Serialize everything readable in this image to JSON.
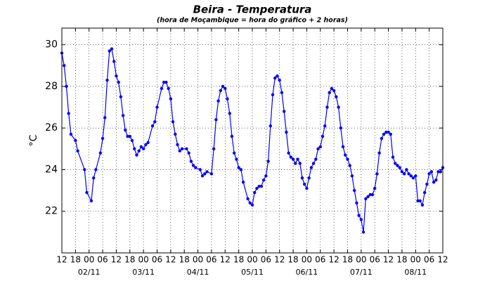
{
  "chart_data": {
    "type": "line",
    "title": "Beira - Temperatura",
    "subtitle": "(hora de Moçambique = hora do gráfico + 2 horas)",
    "y_label": "°C",
    "color": "#0000ff",
    "grid": true,
    "xlim": [
      0,
      168
    ],
    "ylim": [
      20,
      30.8
    ],
    "yticks": [
      22,
      24,
      26,
      28,
      30
    ],
    "xticks": [
      {
        "value": 0,
        "label": "12"
      },
      {
        "value": 6,
        "label": "18"
      },
      {
        "value": 12,
        "label": "00"
      },
      {
        "value": 18,
        "label": "06"
      },
      {
        "value": 24,
        "label": "12"
      },
      {
        "value": 30,
        "label": "18"
      },
      {
        "value": 36,
        "label": "00"
      },
      {
        "value": 42,
        "label": "06"
      },
      {
        "value": 48,
        "label": "12"
      },
      {
        "value": 54,
        "label": "18"
      },
      {
        "value": 60,
        "label": "00"
      },
      {
        "value": 66,
        "label": "06"
      },
      {
        "value": 72,
        "label": "12"
      },
      {
        "value": 78,
        "label": "18"
      },
      {
        "value": 84,
        "label": "00"
      },
      {
        "value": 90,
        "label": "06"
      },
      {
        "value": 96,
        "label": "12"
      },
      {
        "value": 102,
        "label": "18"
      },
      {
        "value": 108,
        "label": "00"
      },
      {
        "value": 114,
        "label": "06"
      },
      {
        "value": 120,
        "label": "12"
      },
      {
        "value": 126,
        "label": "18"
      },
      {
        "value": 132,
        "label": "00"
      },
      {
        "value": 138,
        "label": "06"
      },
      {
        "value": 144,
        "label": "12"
      },
      {
        "value": 150,
        "label": "18"
      },
      {
        "value": 156,
        "label": "00"
      },
      {
        "value": 162,
        "label": "06"
      },
      {
        "value": 168,
        "label": "12"
      }
    ],
    "date_labels": [
      {
        "value": 12,
        "label": "02/11"
      },
      {
        "value": 36,
        "label": "03/11"
      },
      {
        "value": 60,
        "label": "04/11"
      },
      {
        "value": 84,
        "label": "05/11"
      },
      {
        "value": 108,
        "label": "06/11"
      },
      {
        "value": 132,
        "label": "07/11"
      },
      {
        "value": 156,
        "label": "08/11"
      }
    ],
    "x": [
      0,
      1,
      2,
      3,
      4,
      6,
      7,
      10,
      11,
      13,
      14,
      15,
      17,
      18,
      19,
      20,
      21,
      22,
      23,
      24,
      25,
      26,
      27,
      28,
      29,
      30,
      31,
      32,
      33,
      34,
      35,
      36,
      37,
      38,
      40,
      41,
      42,
      44,
      45,
      46,
      47,
      48,
      49,
      50,
      51,
      52,
      53,
      55,
      56,
      57,
      58,
      59,
      61,
      62,
      63,
      64,
      66,
      67,
      68,
      69,
      70,
      71,
      72,
      73,
      74,
      75,
      76,
      77,
      78,
      79,
      80,
      82,
      83,
      84,
      85,
      86,
      87,
      88,
      89,
      90,
      91,
      92,
      93,
      94,
      95,
      96,
      97,
      98,
      99,
      100,
      101,
      102,
      103,
      104,
      105,
      106,
      107,
      108,
      109,
      110,
      111,
      112,
      113,
      114,
      115,
      116,
      117,
      118,
      119,
      120,
      121,
      122,
      123,
      124,
      125,
      126,
      127,
      128,
      129,
      130,
      131,
      132,
      133,
      134,
      135,
      136,
      137,
      138,
      139,
      140,
      141,
      142,
      143,
      144,
      145,
      146,
      147,
      148,
      149,
      150,
      151,
      152,
      153,
      154,
      155,
      156,
      157,
      158,
      159,
      160,
      161,
      162,
      163,
      164,
      165,
      166,
      167,
      168
    ],
    "values": [
      29.6,
      29.0,
      28.0,
      26.7,
      25.7,
      25.4,
      24.9,
      24.0,
      22.9,
      22.5,
      23.6,
      24.0,
      24.8,
      25.5,
      26.5,
      28.3,
      29.7,
      29.8,
      29.2,
      28.5,
      28.2,
      27.5,
      26.6,
      25.9,
      25.6,
      25.6,
      25.4,
      25.0,
      24.7,
      24.9,
      25.1,
      25.0,
      25.2,
      25.3,
      26.1,
      26.3,
      27.0,
      27.9,
      28.2,
      28.2,
      27.9,
      27.4,
      26.3,
      25.7,
      25.2,
      24.9,
      25.0,
      25.0,
      24.8,
      24.4,
      24.2,
      24.1,
      24.0,
      23.7,
      23.8,
      23.9,
      23.8,
      25.0,
      26.4,
      27.3,
      27.8,
      28.0,
      27.9,
      27.4,
      26.7,
      25.6,
      24.8,
      24.5,
      24.1,
      24.0,
      23.4,
      22.6,
      22.4,
      22.3,
      22.9,
      23.1,
      23.2,
      23.2,
      23.5,
      23.7,
      24.4,
      26.1,
      27.6,
      28.4,
      28.5,
      28.3,
      27.7,
      26.8,
      25.8,
      24.8,
      24.6,
      24.5,
      24.3,
      24.5,
      24.3,
      23.6,
      23.3,
      23.1,
      23.6,
      24.1,
      24.3,
      24.5,
      25.0,
      25.1,
      25.6,
      26.1,
      27.0,
      27.7,
      27.9,
      27.8,
      27.5,
      27.0,
      26.0,
      25.1,
      24.7,
      24.5,
      24.2,
      23.7,
      23.0,
      22.4,
      21.8,
      21.6,
      21.0,
      22.6,
      22.7,
      22.8,
      22.8,
      23.1,
      23.8,
      24.8,
      25.5,
      25.7,
      25.8,
      25.8,
      25.7,
      24.6,
      24.3,
      24.2,
      24.1,
      23.9,
      23.8,
      24.0,
      23.8,
      23.7,
      23.6,
      23.7,
      22.5,
      22.5,
      22.3,
      22.9,
      23.3,
      23.8,
      23.9,
      23.4,
      23.5,
      23.9,
      23.9,
      24.1
    ]
  }
}
